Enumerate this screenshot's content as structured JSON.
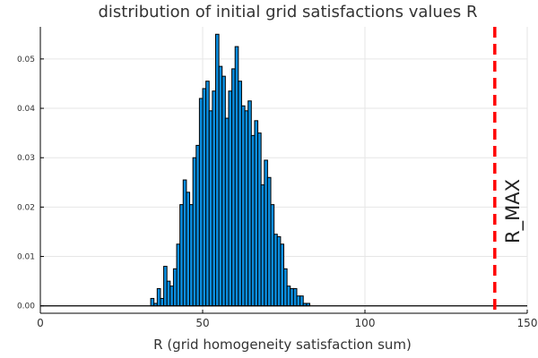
{
  "chart_data": {
    "type": "bar",
    "title": "distribution of initial grid satisfactions values R",
    "xlabel": "R (grid homogeneity satisfaction sum)",
    "ylabel": "",
    "xlim": [
      0,
      150
    ],
    "ylim": [
      -0.0015,
      0.0565
    ],
    "grid": true,
    "legend": "none",
    "x_ticks": [
      0,
      50,
      100,
      150
    ],
    "y_ticks": [
      0.0,
      0.01,
      0.02,
      0.03,
      0.04,
      0.05
    ],
    "x_tick_labels": [
      "0",
      "50",
      "100",
      "150"
    ],
    "y_tick_labels": [
      "0.00",
      "0.01",
      "0.02",
      "0.03",
      "0.04",
      "0.05"
    ],
    "bin_width": 1,
    "bin_starts": [
      34,
      35,
      36,
      37,
      38,
      39,
      40,
      41,
      42,
      43,
      44,
      45,
      46,
      47,
      48,
      49,
      50,
      51,
      52,
      53,
      54,
      55,
      56,
      57,
      58,
      59,
      60,
      61,
      62,
      63,
      64,
      65,
      66,
      67,
      68,
      69,
      70,
      71,
      72,
      73,
      74,
      75,
      76,
      77,
      78,
      79,
      80,
      81,
      82
    ],
    "values": [
      0.0015,
      0.0005,
      0.0035,
      0.0015,
      0.008,
      0.005,
      0.004,
      0.0075,
      0.0125,
      0.0205,
      0.0255,
      0.023,
      0.0205,
      0.03,
      0.0325,
      0.042,
      0.044,
      0.0455,
      0.0395,
      0.0435,
      0.055,
      0.0485,
      0.0465,
      0.038,
      0.0435,
      0.048,
      0.0525,
      0.0455,
      0.0405,
      0.0395,
      0.0415,
      0.0345,
      0.0375,
      0.035,
      0.0245,
      0.0295,
      0.026,
      0.0205,
      0.0145,
      0.014,
      0.0125,
      0.0075,
      0.004,
      0.0035,
      0.0035,
      0.002,
      0.002,
      0.0005,
      0.0005
    ],
    "bar_color": "#0b8ee0",
    "reference_line": {
      "x": 140,
      "label": "R_MAX",
      "color": "#ff0000",
      "style": "dashed"
    }
  }
}
